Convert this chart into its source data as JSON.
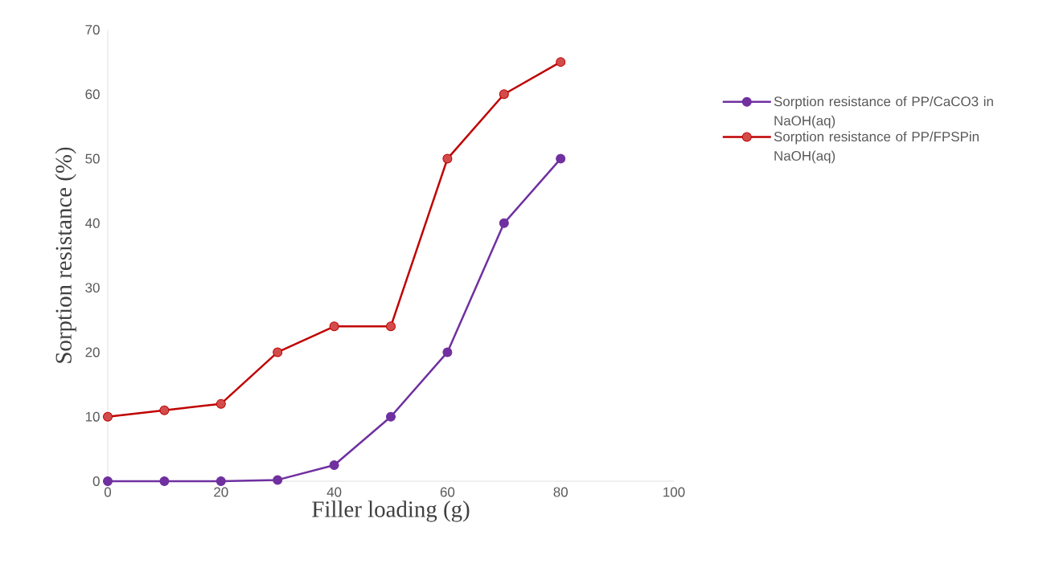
{
  "chart_data": {
    "type": "line",
    "xlabel": "Filler loading (g)",
    "ylabel": "Sorption resistance (%)",
    "x": [
      0,
      10,
      20,
      30,
      40,
      50,
      60,
      70,
      80
    ],
    "series": [
      {
        "name": "Sorption resistance of PP/CaCO3 in NaOH(aq)",
        "color": "#7030a0",
        "values": [
          0,
          0,
          0,
          0.2,
          2.5,
          10,
          20,
          40,
          50
        ]
      },
      {
        "name": "Sorption resistance of PP/FPSPin NaOH(aq)",
        "color": "#c00000",
        "values": [
          10,
          11,
          12,
          20,
          24,
          24,
          50,
          60,
          65
        ]
      }
    ],
    "xlim": [
      0,
      100
    ],
    "xticks": [
      0,
      20,
      40,
      60,
      80,
      100
    ],
    "ylim": [
      0,
      70
    ],
    "yticks": [
      0,
      10,
      20,
      30,
      40,
      50,
      60,
      70
    ],
    "grid": false,
    "legend": "right",
    "marker": "circle",
    "line_style": "solid"
  }
}
